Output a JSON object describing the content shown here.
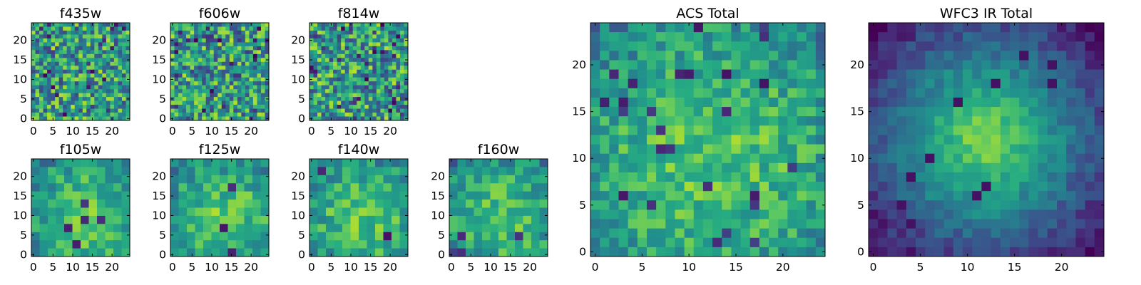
{
  "chart_data": [
    {
      "type": "heatmap",
      "title": "f435w",
      "xticks": [
        0,
        5,
        10,
        15,
        20
      ],
      "yticks": [
        0,
        5,
        10,
        15,
        20
      ],
      "xlim": [
        -0.5,
        24.5
      ],
      "ylim": [
        -0.5,
        24.5
      ],
      "grid_size": 25,
      "colormap": "viridis",
      "values_description": ""
    },
    {
      "type": "heatmap",
      "title": "f606w",
      "xticks": [
        0,
        5,
        10,
        15,
        20
      ],
      "yticks": [
        0,
        5,
        10,
        15,
        20
      ],
      "xlim": [
        -0.5,
        24.5
      ],
      "ylim": [
        -0.5,
        24.5
      ],
      "grid_size": 25,
      "colormap": "viridis"
    },
    {
      "type": "heatmap",
      "title": "f814w",
      "xticks": [
        0,
        5,
        10,
        15,
        20
      ],
      "yticks": [
        0,
        5,
        10,
        15,
        20
      ],
      "xlim": [
        -0.5,
        24.5
      ],
      "ylim": [
        -0.5,
        24.5
      ],
      "grid_size": 25,
      "colormap": "viridis"
    },
    {
      "type": "heatmap",
      "title": "f105w",
      "xticks": [
        0,
        5,
        10,
        15,
        20
      ],
      "yticks": [
        0,
        5,
        10,
        15,
        20
      ],
      "xlim": [
        -0.5,
        24.5
      ],
      "ylim": [
        -0.5,
        24.5
      ],
      "grid_size": 12,
      "colormap": "viridis"
    },
    {
      "type": "heatmap",
      "title": "f125w",
      "xticks": [
        0,
        5,
        10,
        15,
        20
      ],
      "yticks": [
        0,
        5,
        10,
        15,
        20
      ],
      "xlim": [
        -0.5,
        24.5
      ],
      "ylim": [
        -0.5,
        24.5
      ],
      "grid_size": 12,
      "colormap": "viridis"
    },
    {
      "type": "heatmap",
      "title": "f140w",
      "xticks": [
        0,
        5,
        10,
        15,
        20
      ],
      "yticks": [
        0,
        5,
        10,
        15,
        20
      ],
      "xlim": [
        -0.5,
        24.5
      ],
      "ylim": [
        -0.5,
        24.5
      ],
      "grid_size": 12,
      "colormap": "viridis"
    },
    {
      "type": "heatmap",
      "title": "f160w",
      "xticks": [
        0,
        5,
        10,
        15,
        20
      ],
      "yticks": [
        0,
        5,
        10,
        15,
        20
      ],
      "xlim": [
        -0.5,
        24.5
      ],
      "ylim": [
        -0.5,
        24.5
      ],
      "grid_size": 12,
      "colormap": "viridis"
    },
    {
      "type": "heatmap",
      "title": "ACS Total",
      "xticks": [
        0,
        5,
        10,
        15,
        20
      ],
      "yticks": [
        0,
        5,
        10,
        15,
        20
      ],
      "xlim": [
        -0.5,
        24.5
      ],
      "ylim": [
        -0.5,
        24.5
      ],
      "grid_size": 25,
      "colormap": "viridis"
    },
    {
      "type": "heatmap",
      "title": "WFC3 IR Total",
      "xticks": [
        0,
        5,
        10,
        15,
        20
      ],
      "yticks": [
        0,
        5,
        10,
        15,
        20
      ],
      "xlim": [
        -0.5,
        24.5
      ],
      "ylim": [
        -0.5,
        24.5
      ],
      "grid_size": 25,
      "colormap": "viridis"
    }
  ]
}
